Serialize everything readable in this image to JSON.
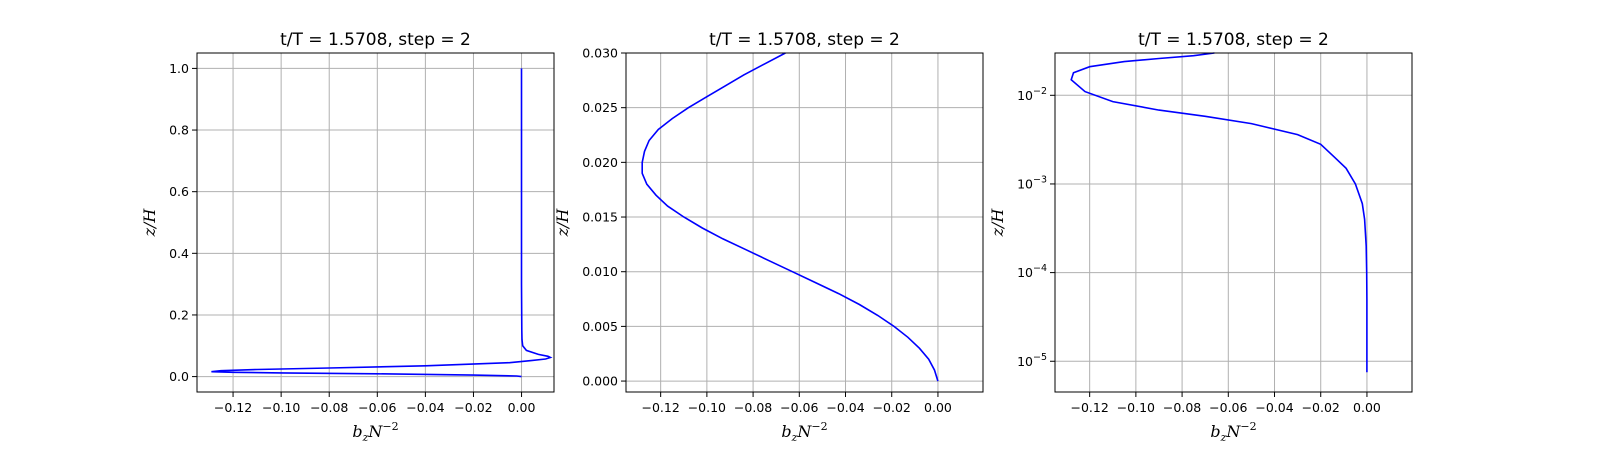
{
  "chart_data": [
    {
      "type": "line",
      "title": "t/T = 1.5708, step = 2",
      "xlabel": {
        "base": "b",
        "sub": "z",
        "mid": "N",
        "sup": "−2"
      },
      "ylabel": "z/H",
      "xlim": [
        -0.135,
        0.0135
      ],
      "ylim": [
        -0.05,
        1.05
      ],
      "yscale": "linear",
      "xticks": [
        -0.12,
        -0.1,
        -0.08,
        -0.06,
        -0.04,
        -0.02,
        0.0
      ],
      "xtick_labels": [
        "−0.12",
        "−0.10",
        "−0.08",
        "−0.06",
        "−0.04",
        "−0.02",
        "0.00"
      ],
      "yticks": [
        0.0,
        0.2,
        0.4,
        0.6,
        0.8,
        1.0
      ],
      "ytick_labels": [
        "0.0",
        "0.2",
        "0.4",
        "0.6",
        "0.8",
        "1.0"
      ],
      "grid": true,
      "color": "#0000ff",
      "series": [
        {
          "x": [
            0.0,
            -0.002,
            -0.02,
            -0.06,
            -0.1,
            -0.12,
            -0.129,
            -0.125,
            -0.11,
            -0.08,
            -0.04,
            -0.005,
            0.004,
            0.01,
            0.012,
            0.011,
            0.007,
            0.002,
            0.0005,
            0.0002,
            0.0001,
            0.0,
            0.0
          ],
          "y": [
            0.0,
            0.002,
            0.005,
            0.009,
            0.012,
            0.014,
            0.016,
            0.019,
            0.023,
            0.028,
            0.035,
            0.045,
            0.052,
            0.057,
            0.062,
            0.066,
            0.072,
            0.085,
            0.1,
            0.12,
            0.15,
            0.3,
            1.0
          ]
        }
      ]
    },
    {
      "type": "line",
      "title": "t/T = 1.5708, step = 2",
      "xlabel": {
        "base": "b",
        "sub": "z",
        "mid": "N",
        "sup": "−2"
      },
      "ylabel": "z/H",
      "xlim": [
        -0.135,
        0.0195
      ],
      "ylim": [
        -0.001,
        0.03
      ],
      "yscale": "linear",
      "xticks": [
        -0.12,
        -0.1,
        -0.08,
        -0.06,
        -0.04,
        -0.02,
        0.0
      ],
      "xtick_labels": [
        "−0.12",
        "−0.10",
        "−0.08",
        "−0.06",
        "−0.04",
        "−0.02",
        "0.00"
      ],
      "yticks": [
        0.0,
        0.005,
        0.01,
        0.015,
        0.02,
        0.025,
        0.03
      ],
      "ytick_labels": [
        "0.000",
        "0.005",
        "0.010",
        "0.015",
        "0.020",
        "0.025",
        "0.030"
      ],
      "grid": true,
      "color": "#0000ff",
      "series": [
        {
          "x": [
            0.0,
            -0.0015,
            -0.004,
            -0.008,
            -0.013,
            -0.019,
            -0.026,
            -0.034,
            -0.043,
            -0.053,
            -0.063,
            -0.073,
            -0.083,
            -0.093,
            -0.102,
            -0.11,
            -0.117,
            -0.122,
            -0.126,
            -0.128,
            -0.128,
            -0.127,
            -0.125,
            -0.121,
            -0.115,
            -0.108,
            -0.1,
            -0.092,
            -0.084,
            -0.075,
            -0.066
          ],
          "y": [
            0.0,
            0.001,
            0.002,
            0.003,
            0.004,
            0.005,
            0.006,
            0.007,
            0.008,
            0.009,
            0.01,
            0.011,
            0.012,
            0.013,
            0.014,
            0.015,
            0.016,
            0.017,
            0.018,
            0.019,
            0.02,
            0.021,
            0.022,
            0.023,
            0.024,
            0.025,
            0.026,
            0.027,
            0.028,
            0.029,
            0.03
          ]
        }
      ]
    },
    {
      "type": "line",
      "title": "t/T = 1.5708, step = 2",
      "xlabel": {
        "base": "b",
        "sub": "z",
        "mid": "N",
        "sup": "−2"
      },
      "ylabel": "z/H",
      "xlim": [
        -0.135,
        0.0195
      ],
      "ylim": [
        4.5e-06,
        0.03
      ],
      "yscale": "log",
      "xticks": [
        -0.12,
        -0.1,
        -0.08,
        -0.06,
        -0.04,
        -0.02,
        0.0
      ],
      "xtick_labels": [
        "−0.12",
        "−0.10",
        "−0.08",
        "−0.06",
        "−0.04",
        "−0.02",
        "0.00"
      ],
      "yticks": [
        1e-05,
        0.0001,
        0.001,
        0.01
      ],
      "ytick_labels": [
        {
          "base": "10",
          "exp": "−5"
        },
        {
          "base": "10",
          "exp": "−4"
        },
        {
          "base": "10",
          "exp": "−3"
        },
        {
          "base": "10",
          "exp": "−2"
        }
      ],
      "grid": true,
      "color": "#0000ff",
      "series": [
        {
          "x": [
            0.0,
            0.0,
            -0.0001,
            -0.0003,
            -0.001,
            -0.002,
            -0.005,
            -0.009,
            -0.014,
            -0.02,
            -0.03,
            -0.05,
            -0.07,
            -0.09,
            -0.11,
            -0.122,
            -0.128,
            -0.127,
            -0.12,
            -0.105,
            -0.09,
            -0.075,
            -0.066
          ],
          "y": [
            7.5e-06,
            5e-05,
            0.0001,
            0.0002,
            0.0004,
            0.0006,
            0.001,
            0.0015,
            0.002,
            0.0028,
            0.0036,
            0.0048,
            0.0058,
            0.0068,
            0.0085,
            0.011,
            0.015,
            0.018,
            0.021,
            0.024,
            0.026,
            0.028,
            0.03
          ]
        }
      ]
    }
  ]
}
